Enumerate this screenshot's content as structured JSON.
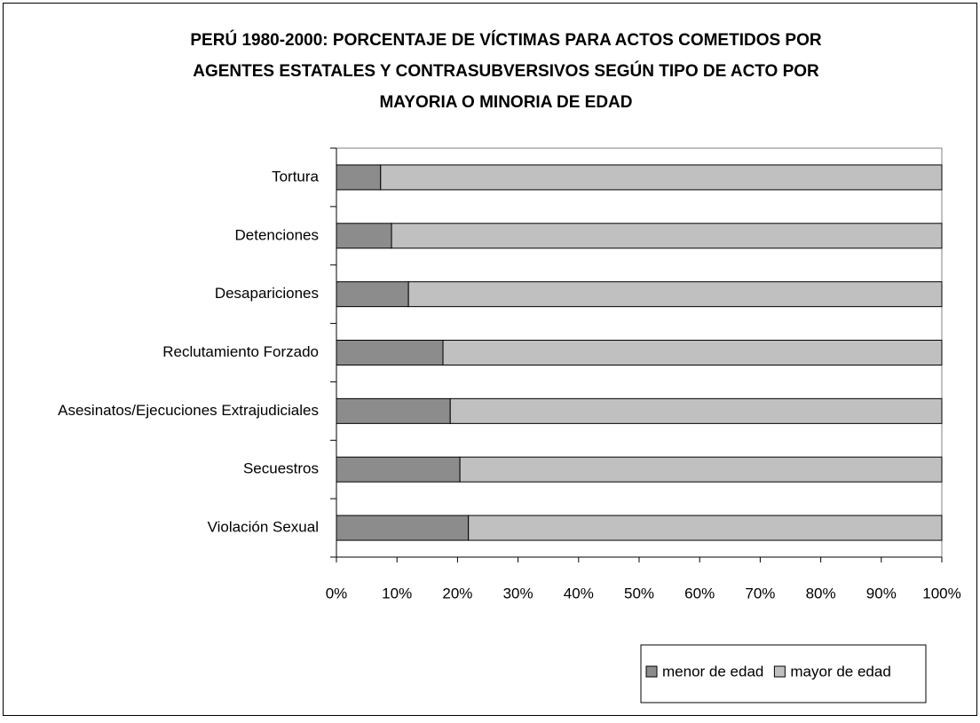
{
  "chart_data": {
    "type": "stacked-bar-horizontal",
    "title": [
      "PERÚ 1980-2000: PORCENTAJE DE VÍCTIMAS PARA ACTOS COMETIDOS POR",
      "AGENTES ESTATALES Y CONTRASUBVERSIVOS SEGÚN TIPO DE ACTO POR",
      "MAYORIA O MINORIA DE EDAD"
    ],
    "categories": [
      "Tortura",
      "Detenciones",
      "Desapariciones",
      "Reclutamiento Forzado",
      "Asesinatos/Ejecuciones Extrajudiciales",
      "Secuestros",
      "Violación Sexual"
    ],
    "series": [
      {
        "name": "menor de edad",
        "color": "#8c8c8c",
        "values": [
          7.3,
          9.1,
          11.9,
          17.6,
          18.8,
          20.4,
          21.8
        ]
      },
      {
        "name": "mayor de edad",
        "color": "#c0c0c0",
        "values": [
          92.7,
          90.9,
          88.1,
          82.4,
          81.2,
          79.6,
          78.2
        ]
      }
    ],
    "xlim": [
      0,
      100
    ],
    "xticks": [
      {
        "value": 0,
        "label": "0%"
      },
      {
        "value": 10,
        "label": "10%"
      },
      {
        "value": 20,
        "label": "20%"
      },
      {
        "value": 30,
        "label": "30%"
      },
      {
        "value": 40,
        "label": "40%"
      },
      {
        "value": 50,
        "label": "50%"
      },
      {
        "value": 60,
        "label": "60%"
      },
      {
        "value": 70,
        "label": "70%"
      },
      {
        "value": 80,
        "label": "80%"
      },
      {
        "value": 90,
        "label": "90%"
      },
      {
        "value": 100,
        "label": "100%"
      }
    ],
    "legend": "bottom-right"
  }
}
